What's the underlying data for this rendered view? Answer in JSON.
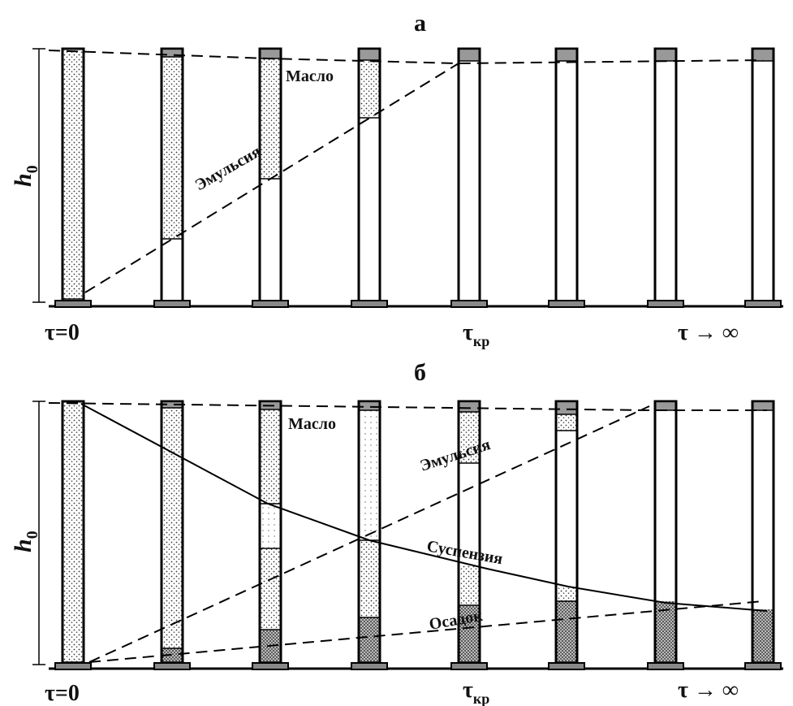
{
  "panels": [
    {
      "label": "а",
      "height_symbol": "h",
      "height_sub": "0",
      "layers": [
        "Масло",
        "Эмульсия"
      ],
      "time_start": "τ=0",
      "time_critical_symbol": "τ",
      "time_critical_sub": "кр",
      "time_end": "τ → ∞"
    },
    {
      "label": "б",
      "height_symbol": "h",
      "height_sub": "0",
      "layers": [
        "Масло",
        "Эмульсия",
        "Суспензия",
        "Осадок"
      ],
      "time_start": "τ=0",
      "time_critical_symbol": "τ",
      "time_critical_sub": "кр",
      "time_end": "τ → ∞"
    }
  ]
}
